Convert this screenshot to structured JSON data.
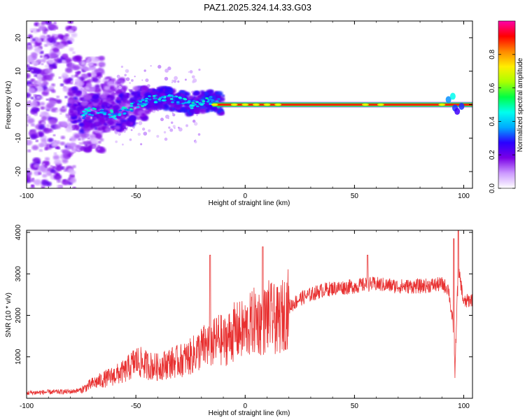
{
  "page_title": "PAZ1.2025.324.14.33.G03",
  "chart_data": [
    {
      "type": "heatmap",
      "id": "spectrogram",
      "xlabel": "Height of straight line (km)",
      "ylabel": "Frequency (Hz)",
      "xlim": [
        -100,
        104
      ],
      "ylim": [
        -25,
        25
      ],
      "xticks": [
        -100,
        -50,
        0,
        50,
        100
      ],
      "xtick_labels": [
        "-100",
        "-50",
        "0",
        "50",
        "100"
      ],
      "yticks": [
        -20,
        -10,
        0,
        10,
        20
      ],
      "ytick_labels": [
        "-20",
        "-10",
        "0",
        "10",
        "20"
      ],
      "colorbar": {
        "label": "Normalized spectral amplitude",
        "range": [
          0.0,
          1.0
        ],
        "ticks": [
          0.0,
          0.2,
          0.4,
          0.6,
          0.8
        ],
        "tick_labels": [
          "0.0",
          "0.2",
          "0.4",
          "0.6",
          "0.8"
        ],
        "colors": [
          "#ffffff",
          "#cc99ff",
          "#7a00e6",
          "#2a00ff",
          "#00aaff",
          "#00ffee",
          "#00ff44",
          "#aaff00",
          "#ffee00",
          "#ff8800",
          "#ff0000",
          "#ff00aa"
        ]
      },
      "ridge": {
        "x": [
          -75,
          -70,
          -60,
          -55,
          -50,
          -45,
          -40,
          -35,
          -30,
          -25,
          -20,
          -15,
          -10,
          -5,
          0,
          10,
          20,
          50,
          90,
          95,
          97,
          100,
          104
        ],
        "freq": [
          -3,
          -2,
          -3,
          -2,
          0,
          1,
          2,
          2,
          1,
          0,
          1,
          1,
          0,
          0,
          0,
          0,
          0,
          0,
          0,
          2,
          -1,
          0,
          0
        ]
      }
    },
    {
      "type": "line",
      "id": "snr",
      "xlabel": "Height of straight line (km)",
      "ylabel": "SNR (10 * v/v)",
      "xlim": [
        -100,
        104
      ],
      "ylim": [
        0,
        4050
      ],
      "xticks": [
        -100,
        -50,
        0,
        50,
        100
      ],
      "xtick_labels": [
        "-100",
        "-50",
        "0",
        "50",
        "100"
      ],
      "yticks": [
        1000,
        2000,
        3000,
        4000
      ],
      "ytick_labels": [
        "1000",
        "2000",
        "3000",
        "4000"
      ],
      "line_color": "#e83030",
      "series": [
        {
          "name": "SNR",
          "x": [
            -100,
            -90,
            -80,
            -75,
            -70,
            -65,
            -60,
            -55,
            -50,
            -45,
            -40,
            -35,
            -30,
            -25,
            -20,
            -17,
            -15,
            -12,
            -10,
            -5,
            0,
            5,
            8,
            10,
            15,
            20,
            25,
            30,
            35,
            40,
            50,
            56,
            60,
            70,
            80,
            90,
            93,
            95,
            96,
            97,
            98,
            100,
            104
          ],
          "y": [
            130,
            150,
            160,
            200,
            350,
            450,
            550,
            650,
            900,
            800,
            750,
            850,
            900,
            1000,
            1200,
            1300,
            1300,
            1450,
            1350,
            1600,
            1650,
            1900,
            1800,
            2000,
            1850,
            2200,
            2400,
            2500,
            2600,
            2650,
            2700,
            2750,
            2750,
            2700,
            2700,
            2750,
            2650,
            1800,
            600,
            2500,
            3000,
            2300,
            2400
          ]
        }
      ]
    }
  ]
}
